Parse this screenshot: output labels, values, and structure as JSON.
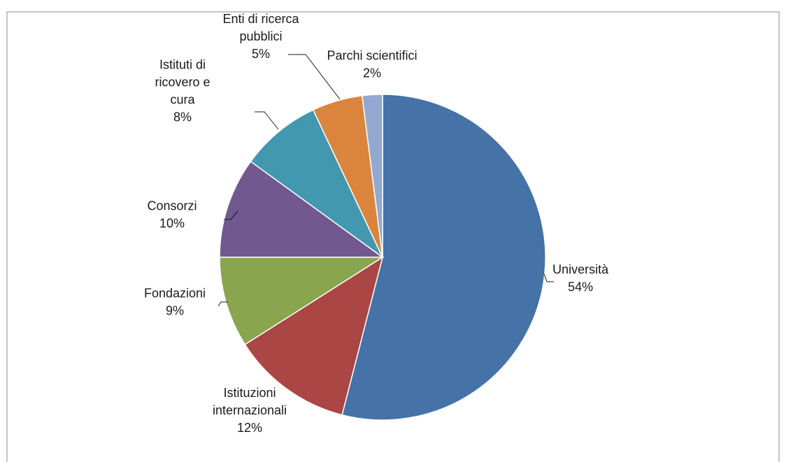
{
  "chart_data": {
    "type": "pie",
    "title": "",
    "start_angle_deg": 0,
    "direction": "clockwise",
    "series": [
      {
        "values": [
          54,
          12,
          9,
          10,
          8,
          5,
          2
        ],
        "categories": [
          "Università",
          "Istituzioni internazionali",
          "Fondazioni",
          "Consorzi",
          "Istituti di ricovero e cura",
          "Enti di ricerca pubblici",
          "Parchi scientifici"
        ],
        "percent_labels": [
          "54%",
          "12%",
          "9%",
          "10%",
          "8%",
          "5%",
          "2%"
        ]
      }
    ],
    "colors": [
      "#4572a7",
      "#aa4643",
      "#89a54e",
      "#71588f",
      "#4198af",
      "#db843d",
      "#93a9cf"
    ],
    "label_lines": {
      "Università": [
        "Università"
      ],
      "Istituzioni internazionali": [
        "Istituzioni",
        "internazionali"
      ],
      "Fondazioni": [
        "Fondazioni"
      ],
      "Consorzi": [
        "Consorzi"
      ],
      "Istituti di ricovero e cura": [
        "Istituti di",
        "ricovero e",
        "cura"
      ],
      "Enti di ricerca pubblici": [
        "Enti di ricerca",
        "pubblici"
      ],
      "Parchi scientifici": [
        "Parchi scientifici"
      ]
    },
    "legend": "none",
    "data_labels": "outside with leader lines"
  }
}
